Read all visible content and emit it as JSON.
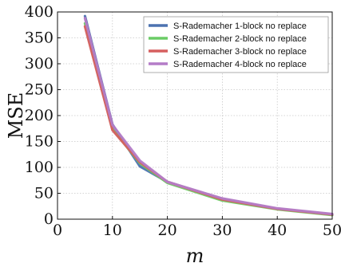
{
  "chart_data": {
    "type": "line",
    "title": "",
    "xlabel": "m",
    "ylabel": "MSE",
    "xlim": [
      0,
      50
    ],
    "ylim": [
      0,
      400
    ],
    "xticks": [
      0,
      10,
      20,
      30,
      40,
      50
    ],
    "yticks": [
      0,
      50,
      100,
      150,
      200,
      250,
      300,
      350,
      400
    ],
    "grid": true,
    "legend_position": "top-right",
    "series": [
      {
        "name": "S-Rademacher 1-block no replace",
        "color": "#4c72b0",
        "x": [
          5,
          10,
          15,
          20,
          30,
          40,
          50
        ],
        "y": [
          392,
          183,
          102,
          72,
          39,
          20,
          9
        ]
      },
      {
        "name": "S-Rademacher 2-block no replace",
        "color": "#6acc65",
        "x": [
          5,
          10,
          15,
          20,
          30,
          40,
          50
        ],
        "y": [
          378,
          174,
          108,
          70,
          36,
          19,
          8
        ]
      },
      {
        "name": "S-Rademacher 3-block no replace",
        "color": "#d65f5f",
        "x": [
          5,
          10,
          15,
          20,
          30,
          40,
          50
        ],
        "y": [
          372,
          172,
          110,
          72,
          38,
          20,
          9
        ]
      },
      {
        "name": "S-Rademacher 4-block no replace",
        "color": "#b47cc7",
        "x": [
          5,
          10,
          15,
          20,
          30,
          40,
          50
        ],
        "y": [
          388,
          182,
          113,
          72,
          40,
          21,
          10
        ]
      }
    ]
  }
}
